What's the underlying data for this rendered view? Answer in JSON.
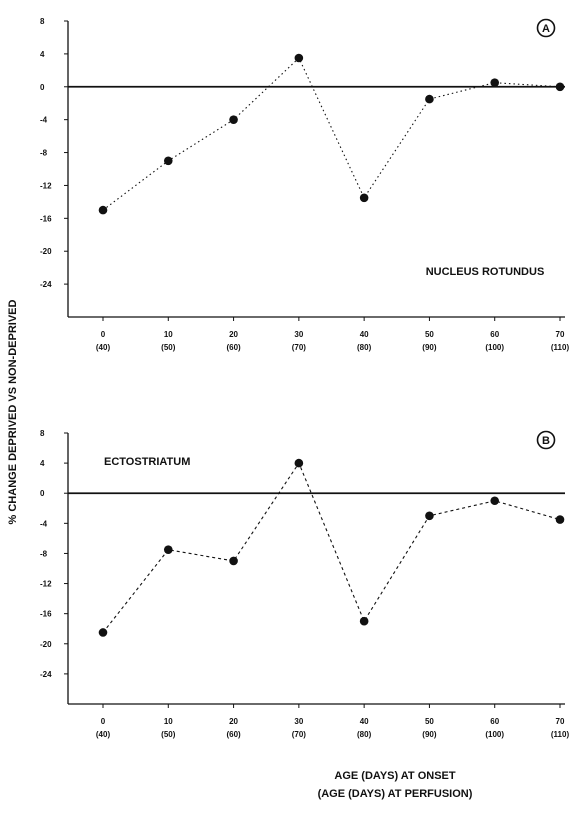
{
  "figure": {
    "ylabel": "% CHANGE DEPRIVED VS NON-DEPRIVED",
    "xlabel_line1": "AGE (DAYS) AT ONSET",
    "xlabel_line2": "(AGE (DAYS) AT PERFUSION)"
  },
  "chart_data": [
    {
      "type": "line",
      "panel_letter": "A",
      "annotation": "NUCLEUS ROTUNDUS",
      "x": [
        0,
        10,
        20,
        30,
        40,
        50,
        60,
        70
      ],
      "xtick_labels": [
        "0",
        "10",
        "20",
        "30",
        "40",
        "50",
        "60",
        "70"
      ],
      "xtick_sublabels": [
        "(40)",
        "(50)",
        "(60)",
        "(70)",
        "(80)",
        "(90)",
        "(100)",
        "(110)"
      ],
      "ytick_labels": [
        "8",
        "4",
        "0",
        "-4",
        "-8",
        "-12",
        "-16",
        "-20",
        "-24"
      ],
      "ylim": [
        -28,
        8
      ],
      "y": [
        -15,
        -9,
        -4,
        3.5,
        -13.5,
        -1.5,
        0.5,
        0
      ],
      "line_style": "dotted",
      "zero_line": true,
      "grid": false
    },
    {
      "type": "line",
      "panel_letter": "B",
      "annotation": "ECTOSTRIATUM",
      "x": [
        0,
        10,
        20,
        30,
        40,
        50,
        60,
        70
      ],
      "xtick_labels": [
        "0",
        "10",
        "20",
        "30",
        "40",
        "50",
        "60",
        "70"
      ],
      "xtick_sublabels": [
        "(40)",
        "(50)",
        "(60)",
        "(70)",
        "(80)",
        "(90)",
        "(100)",
        "(110)"
      ],
      "ytick_labels": [
        "8",
        "4",
        "0",
        "-4",
        "-8",
        "-12",
        "-16",
        "-20",
        "-24"
      ],
      "ylim": [
        -28,
        8
      ],
      "y": [
        -18.5,
        -7.5,
        -9,
        4,
        -17,
        -3,
        -1,
        -3.5
      ],
      "line_style": "dashed",
      "zero_line": true,
      "grid": false
    }
  ]
}
